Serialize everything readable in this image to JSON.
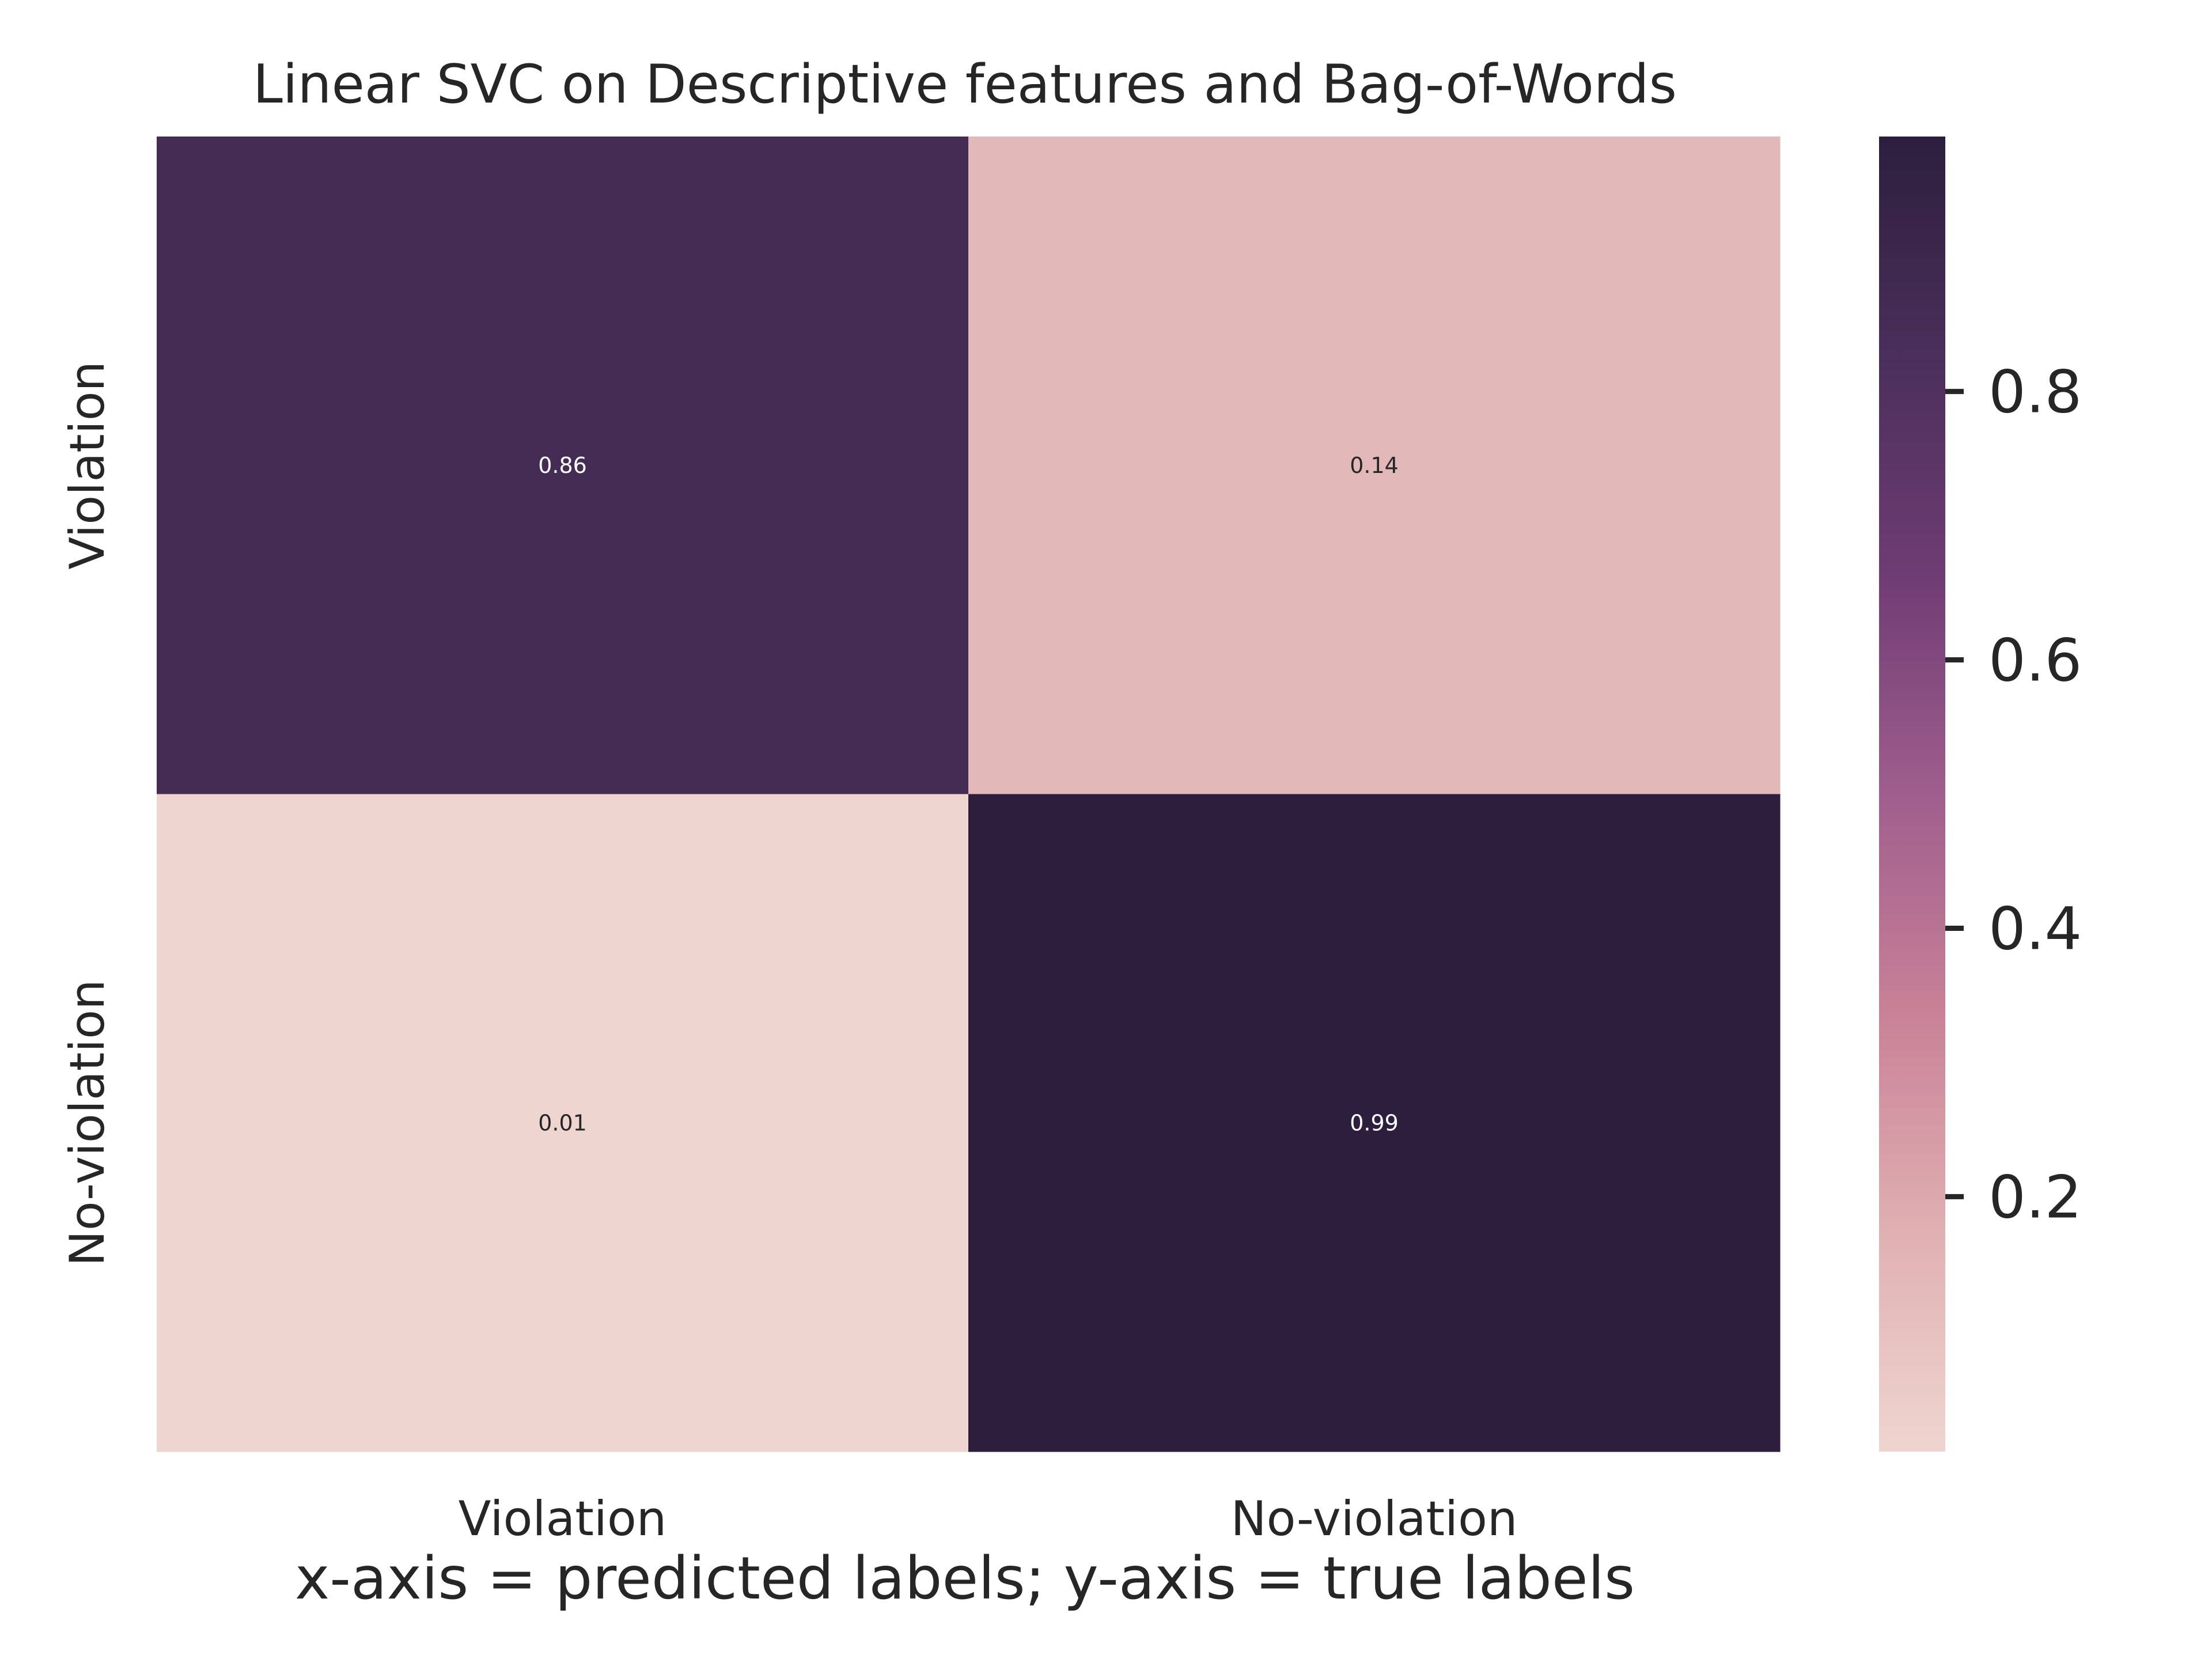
{
  "chart_data": {
    "type": "heatmap",
    "title": "Linear SVC on Descriptive features and Bag-of-Words",
    "xlabel": "x-axis = predicted labels; y-axis = true labels",
    "ylabel": "",
    "x_categories": [
      "Violation",
      "No-violation"
    ],
    "y_categories": [
      "Violation",
      "No-violation"
    ],
    "values": [
      [
        0.86,
        0.14
      ],
      [
        0.01,
        0.99
      ]
    ],
    "annotations": [
      [
        "0.86",
        "0.14"
      ],
      [
        "0.01",
        "0.99"
      ]
    ],
    "colorbar": {
      "range": [
        0.01,
        0.99
      ],
      "ticks": [
        0.2,
        0.4,
        0.6,
        0.8
      ],
      "tick_labels": [
        "0.2",
        "0.4",
        "0.6",
        "0.8"
      ],
      "colormap": [
        "#efd5cf",
        "#e0b0b2",
        "#c98197",
        "#9f5e8d",
        "#6f3c74",
        "#4a2f5a",
        "#2d1e3e"
      ]
    },
    "grid": false
  }
}
